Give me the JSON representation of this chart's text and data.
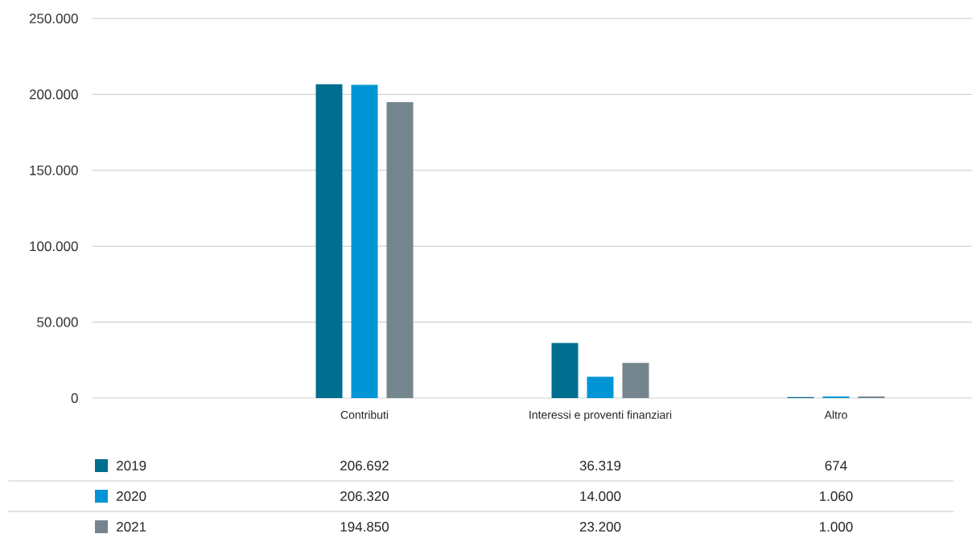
{
  "chart_data": {
    "type": "bar",
    "categories": [
      "Contributi",
      "Interessi e proventi finanziari",
      "Altro"
    ],
    "series": [
      {
        "name": "2019",
        "color": "#006e8f",
        "values": [
          206692,
          36319,
          674
        ],
        "value_labels": [
          "206.692",
          "36.319",
          "674"
        ]
      },
      {
        "name": "2020",
        "color": "#0096d6",
        "values": [
          206320,
          14000,
          1060
        ],
        "value_labels": [
          "206.320",
          "14.000",
          "1.060"
        ]
      },
      {
        "name": "2021",
        "color": "#75858e",
        "values": [
          194850,
          23200,
          1000
        ],
        "value_labels": [
          "194.850",
          "23.200",
          "1.000"
        ]
      }
    ],
    "ylim": [
      0,
      250000
    ],
    "yticks": [
      0,
      {
        "value": 50000,
        "label": "50.000"
      },
      {
        "value": 100000,
        "label": "100.000"
      },
      {
        "value": 150000,
        "label": "150.000"
      },
      {
        "value": 200000,
        "label": "200.000"
      },
      {
        "value": 250000,
        "label": "250.000"
      }
    ],
    "grid": "y",
    "legend": "bottom"
  }
}
